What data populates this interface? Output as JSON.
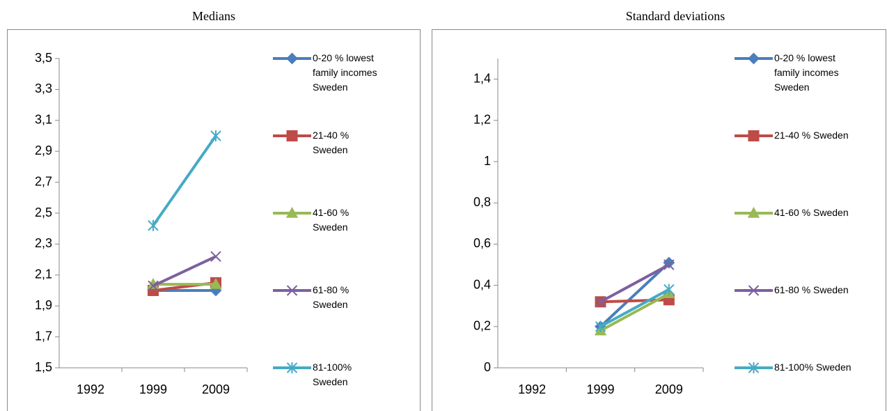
{
  "chart_data": [
    {
      "type": "line",
      "title": "Medians",
      "categories": [
        "1992",
        "1999",
        "2009"
      ],
      "ylim": [
        1.5,
        3.5
      ],
      "yticks": [
        {
          "value": 1.5,
          "label": "1,5"
        },
        {
          "value": 1.7,
          "label": "1,7"
        },
        {
          "value": 1.9,
          "label": "1,9"
        },
        {
          "value": 2.1,
          "label": "2,1"
        },
        {
          "value": 2.3,
          "label": "2,3"
        },
        {
          "value": 2.5,
          "label": "2,5"
        },
        {
          "value": 2.7,
          "label": "2,7"
        },
        {
          "value": 2.9,
          "label": "2,9"
        },
        {
          "value": 3.1,
          "label": "3,1"
        },
        {
          "value": 3.3,
          "label": "3,3"
        },
        {
          "value": 3.5,
          "label": "3,5"
        }
      ],
      "legend": "right",
      "series": [
        {
          "name": "0-20 % lowest family incomes Sweden",
          "color": "#4a7ebb",
          "marker": "diamond",
          "values": [
            null,
            2.0,
            2.0
          ]
        },
        {
          "name": "21-40 % Sweden",
          "color": "#be4b48",
          "marker": "square",
          "values": [
            null,
            2.0,
            2.05
          ]
        },
        {
          "name": "41-60 % Sweden",
          "color": "#98b954",
          "marker": "triangle",
          "values": [
            null,
            2.04,
            2.04
          ]
        },
        {
          "name": "61-80 % Sweden",
          "color": "#7d60a0",
          "marker": "x",
          "values": [
            null,
            2.03,
            2.22
          ]
        },
        {
          "name": "81-100% Sweden",
          "color": "#46aac5",
          "marker": "star",
          "values": [
            null,
            2.42,
            3.0
          ]
        }
      ]
    },
    {
      "type": "line",
      "title": "Standard deviations",
      "categories": [
        "1992",
        "1999",
        "2009"
      ],
      "ylim": [
        0,
        1.5
      ],
      "yticks": [
        0,
        {
          "value": 0.2,
          "label": "0,2"
        },
        {
          "value": 0.4,
          "label": "0,4"
        },
        {
          "value": 0.6,
          "label": "0,6"
        },
        {
          "value": 0.8,
          "label": "0,8"
        },
        1,
        {
          "value": 1.2,
          "label": "1,2"
        },
        {
          "value": 1.4,
          "label": "1,4"
        }
      ],
      "legend": "right",
      "series": [
        {
          "name": "0-20 % lowest family incomes Sweden",
          "color": "#4a7ebb",
          "marker": "diamond",
          "values": [
            null,
            0.2,
            0.51
          ]
        },
        {
          "name": "21-40 % Sweden",
          "color": "#be4b48",
          "marker": "square",
          "values": [
            null,
            0.32,
            0.33
          ]
        },
        {
          "name": "41-60 % Sweden",
          "color": "#98b954",
          "marker": "triangle",
          "values": [
            null,
            0.18,
            0.36
          ]
        },
        {
          "name": "61-80 % Sweden",
          "color": "#7d60a0",
          "marker": "x",
          "values": [
            null,
            0.32,
            0.5
          ]
        },
        {
          "name": "81-100% Sweden",
          "color": "#46aac5",
          "marker": "star",
          "values": [
            null,
            0.2,
            0.38
          ]
        }
      ]
    }
  ]
}
